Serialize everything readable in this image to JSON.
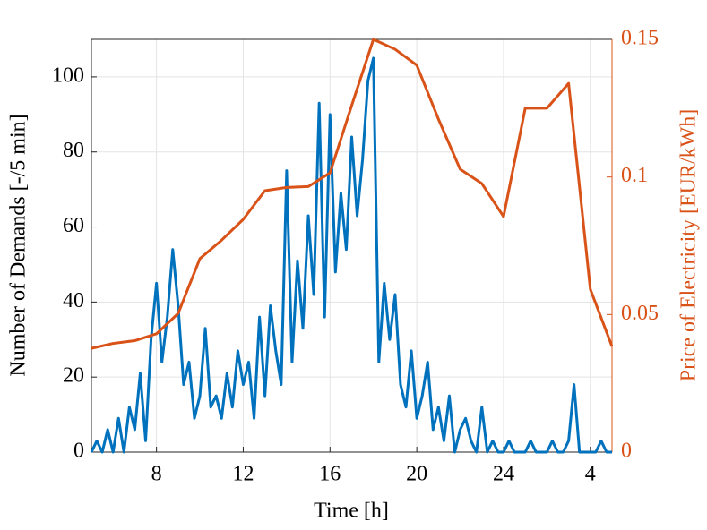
{
  "chart_data": {
    "type": "line",
    "x_label": "Time [h]",
    "y_label": "Number of Demands [-/5 min]",
    "y2_label": "Price of Electricity [EUR/kWh]",
    "xlim": [
      5,
      29
    ],
    "xticks": [
      8,
      12,
      16,
      20,
      24,
      {
        "value": 28,
        "label": "4"
      }
    ],
    "ylim": [
      0,
      110
    ],
    "yticks": [
      0,
      20,
      40,
      60,
      80,
      100
    ],
    "y2lim": [
      0,
      0.15
    ],
    "y2ticks": [
      0,
      0.05,
      0.1,
      0.15
    ],
    "grid": true,
    "series": [
      {
        "name": "Number of Demands",
        "color": "#0072BD",
        "x": [
          5,
          5.25,
          5.5,
          5.75,
          6,
          6.25,
          6.5,
          6.75,
          7,
          7.25,
          7.5,
          7.75,
          8,
          8.25,
          8.5,
          8.75,
          9,
          9.25,
          9.5,
          9.75,
          10,
          10.25,
          10.5,
          10.75,
          11,
          11.25,
          11.5,
          11.75,
          12,
          12.25,
          12.5,
          12.75,
          13,
          13.25,
          13.5,
          13.75,
          14,
          14.25,
          14.5,
          14.75,
          15,
          15.25,
          15.5,
          15.75,
          16,
          16.25,
          16.5,
          16.75,
          17,
          17.25,
          17.5,
          17.75,
          18,
          18.25,
          18.5,
          18.75,
          19,
          19.25,
          19.5,
          19.75,
          20,
          20.25,
          20.5,
          20.75,
          21,
          21.25,
          21.5,
          21.75,
          22,
          22.25,
          22.5,
          22.75,
          23,
          23.25,
          23.5,
          23.75,
          24,
          24.25,
          24.5,
          24.75,
          25,
          25.25,
          25.5,
          25.75,
          26,
          26.25,
          26.5,
          26.75,
          27,
          27.25,
          27.5,
          27.75,
          28,
          28.25,
          28.5,
          28.75,
          29
        ],
        "values": [
          0,
          3,
          0,
          6,
          0,
          9,
          0,
          12,
          6,
          21,
          3,
          30,
          45,
          24,
          36,
          54,
          39,
          18,
          24,
          9,
          15,
          33,
          12,
          15,
          9,
          21,
          12,
          27,
          18,
          24,
          9,
          36,
          15,
          39,
          27,
          18,
          75,
          24,
          51,
          33,
          63,
          42,
          93,
          36,
          90,
          48,
          69,
          54,
          84,
          63,
          78,
          99,
          105,
          24,
          45,
          30,
          42,
          18,
          12,
          27,
          9,
          15,
          24,
          6,
          12,
          3,
          15,
          0,
          6,
          9,
          3,
          0,
          12,
          0,
          3,
          0,
          0,
          3,
          0,
          0,
          0,
          3,
          0,
          0,
          0,
          3,
          0,
          0,
          3,
          18,
          0,
          0,
          0,
          0,
          3,
          0,
          0
        ]
      },
      {
        "name": "Price of Electricity",
        "color": "#D95319",
        "axis": "y2",
        "x": [
          5,
          6,
          7,
          8,
          9,
          10,
          11,
          12,
          13,
          14,
          15,
          16,
          17,
          18,
          19,
          20,
          21,
          22,
          23,
          24,
          25,
          26,
          27,
          28,
          29
        ],
        "values": [
          0.0377,
          0.0395,
          0.0405,
          0.043,
          0.0504,
          0.0703,
          0.077,
          0.0846,
          0.095,
          0.0962,
          0.0965,
          0.1015,
          0.126,
          0.15,
          0.1464,
          0.1406,
          0.121,
          0.1028,
          0.0976,
          0.0856,
          0.125,
          0.125,
          0.134,
          0.0592,
          0.0384
        ]
      }
    ]
  }
}
